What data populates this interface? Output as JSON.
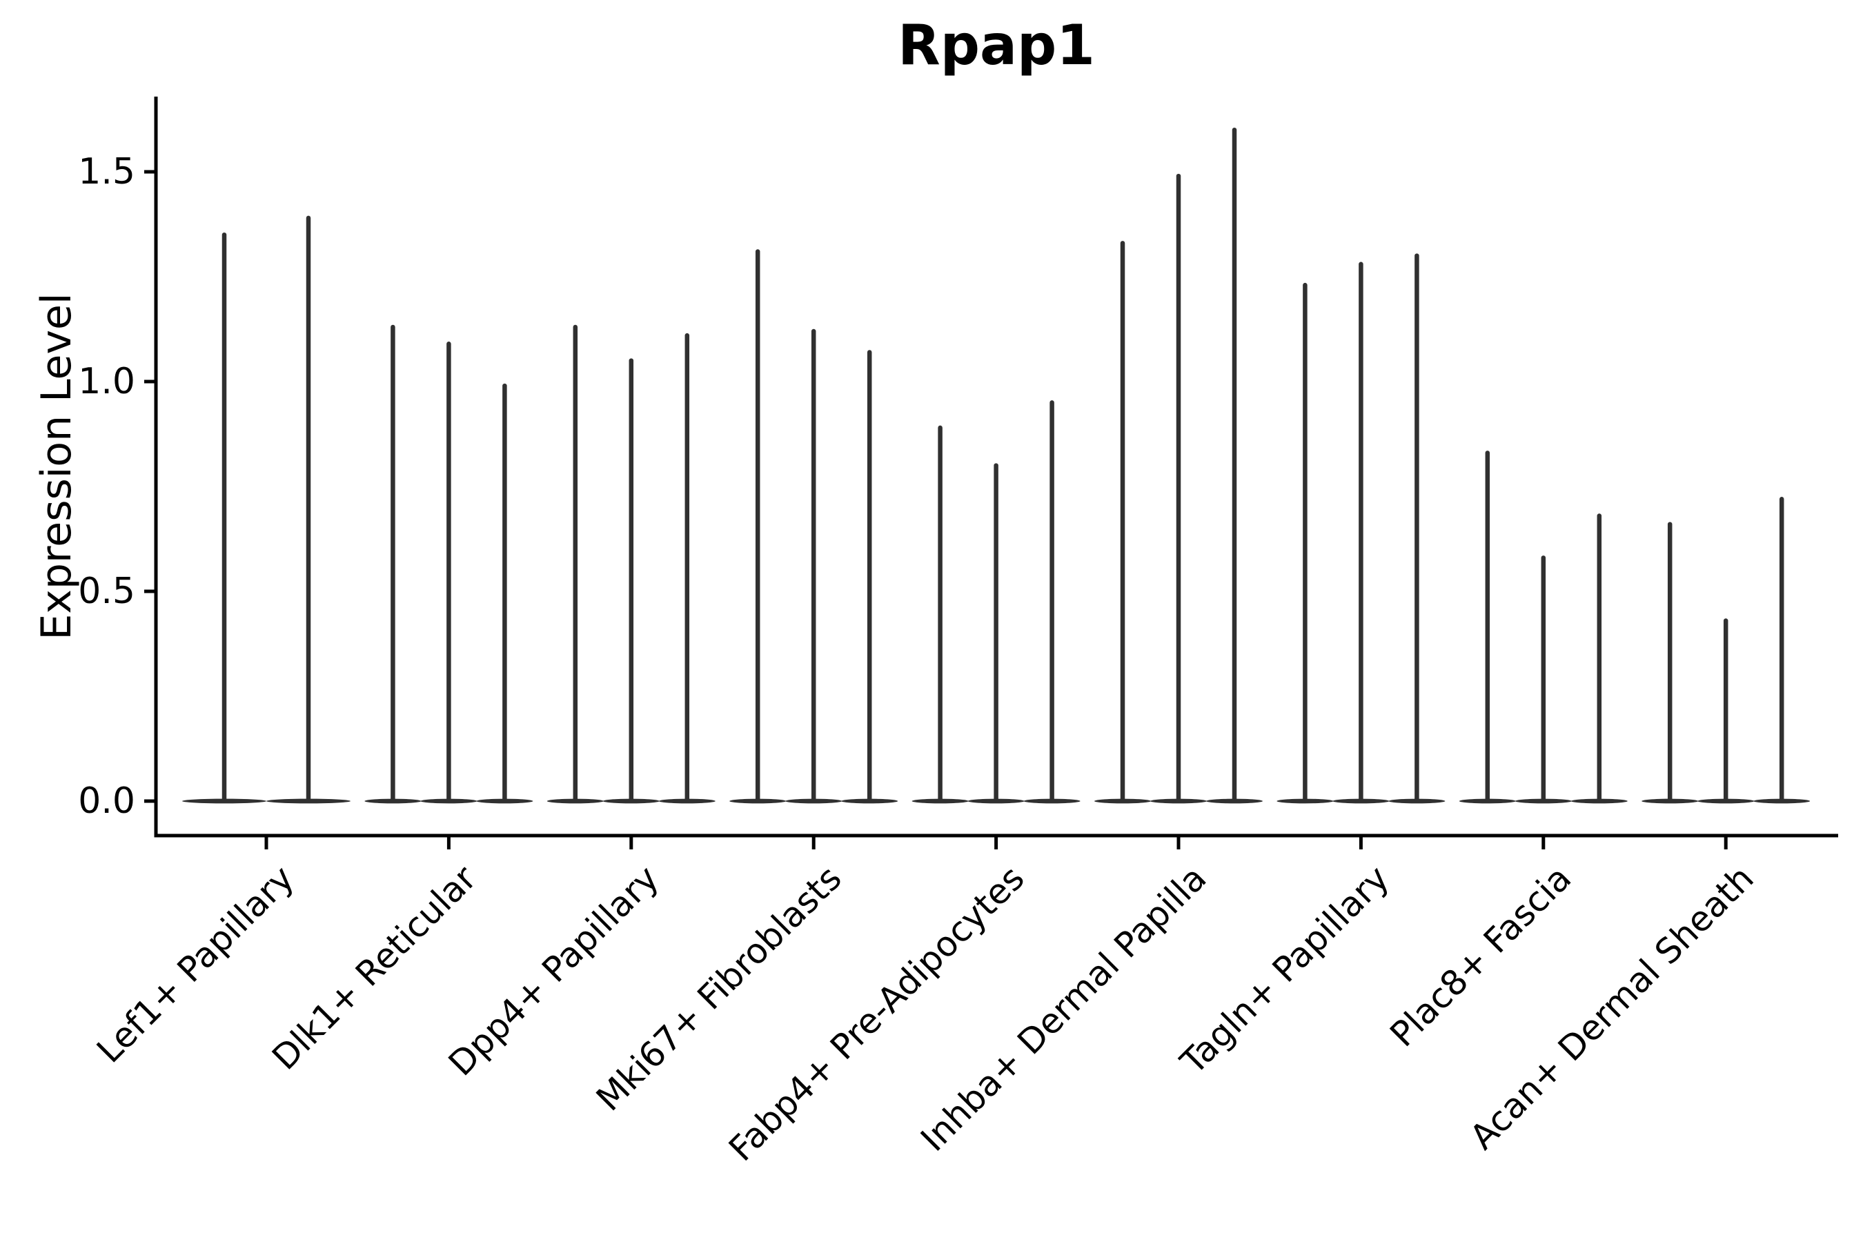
{
  "chart_data": {
    "type": "violin",
    "title": "Rpap1",
    "ylabel": "Expression Level",
    "xlabel": "",
    "categories": [
      "Lef1+ Papillary",
      "Dlk1+ Reticular",
      "Dpp4+ Papillary",
      "Mki67+ Fibroblasts",
      "Fabp4+ Pre-Adipocytes",
      "Inhba+ Dermal Papilla",
      "Tagln+ Papillary",
      "Plac8+ Fascia",
      "Acan+ Dermal Sheath"
    ],
    "ytick_labels": [
      "0.0",
      "0.5",
      "1.0",
      "1.5"
    ],
    "ytick_values": [
      0.0,
      0.5,
      1.0,
      1.5
    ],
    "ylim": [
      0.0,
      1.68
    ],
    "xtick_rotation": 45,
    "grid": false,
    "legend": "none",
    "violin_description": "each category holds thin spike-shaped violins rising from a wide flat base at 0",
    "violin_max_values": [
      [
        1.35,
        1.39
      ],
      [
        1.13,
        1.09,
        0.99
      ],
      [
        1.13,
        1.05,
        1.11
      ],
      [
        1.31,
        1.12,
        1.07
      ],
      [
        0.89,
        0.8,
        0.95
      ],
      [
        1.33,
        1.49,
        1.6
      ],
      [
        1.23,
        1.28,
        1.3
      ],
      [
        0.83,
        0.58,
        0.68
      ],
      [
        0.66,
        0.43,
        0.72
      ]
    ],
    "colors": {
      "violin": "#303030",
      "axis": "#000000",
      "text": "#000000",
      "background": "#ffffff"
    }
  }
}
